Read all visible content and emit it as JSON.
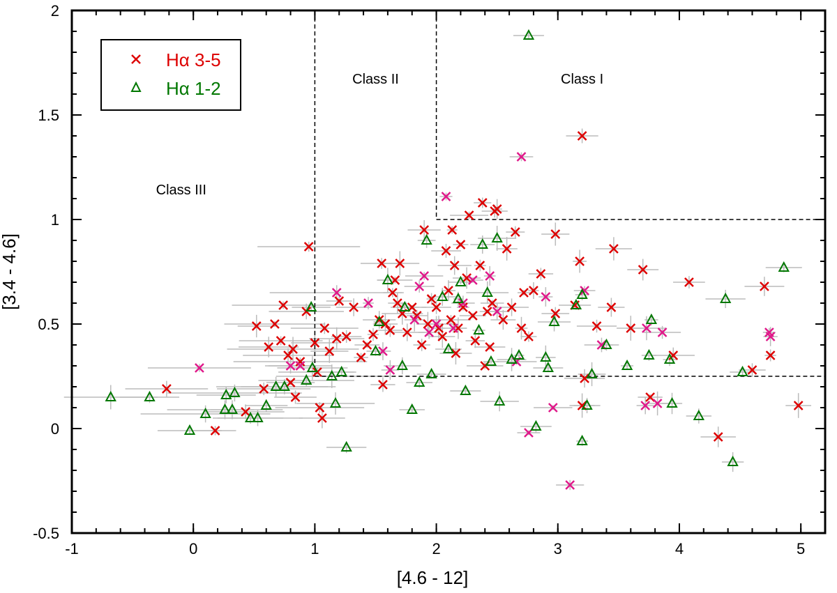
{
  "chart_data": {
    "type": "scatter",
    "xlabel": "[4.6 - 12]",
    "ylabel": "[3.4 - 4.6]",
    "xlim": [
      -1,
      5.2
    ],
    "ylim": [
      -0.5,
      2
    ],
    "xticks": [
      "-1",
      "0",
      "1",
      "2",
      "3",
      "4",
      "5"
    ],
    "yticks": [
      "-0.5",
      "0",
      "0.5",
      "1",
      "1.5",
      "2"
    ],
    "legend_position": "top-left",
    "colors": {
      "ha35": "#dd0000",
      "ha12": "#007700",
      "ha35_alt": "#e0198a",
      "errorbar": "#bbbbbb"
    },
    "regions": [
      {
        "label": "Class I",
        "x": 3.2,
        "y": 1.65
      },
      {
        "label": "Class II",
        "x": 1.5,
        "y": 1.65
      },
      {
        "label": "Class III",
        "x": -0.1,
        "y": 1.12
      }
    ],
    "boundaries": [
      {
        "x1": 1,
        "y1": 2,
        "x2": 1,
        "y2": 0.25
      },
      {
        "x1": 1,
        "y1": 0.25,
        "x2": 5.2,
        "y2": 0.25
      },
      {
        "x1": 2,
        "y1": 2,
        "x2": 2,
        "y2": 1
      },
      {
        "x1": 2,
        "y1": 1,
        "x2": 5.2,
        "y2": 1
      }
    ],
    "series": [
      {
        "name": "Hα 3-5",
        "legend": "Hα 3-5",
        "marker": "x",
        "color": "#dd0000",
        "points": [
          [
            -0.22,
            0.19
          ],
          [
            0.18,
            -0.01
          ],
          [
            0.43,
            0.08
          ],
          [
            0.52,
            0.49
          ],
          [
            0.58,
            0.19
          ],
          [
            0.62,
            0.39
          ],
          [
            0.67,
            0.5
          ],
          [
            0.72,
            0.42
          ],
          [
            0.74,
            0.59
          ],
          [
            0.78,
            0.35
          ],
          [
            0.8,
            0.22
          ],
          [
            0.82,
            0.38
          ],
          [
            0.84,
            0.15
          ],
          [
            0.88,
            0.32
          ],
          [
            0.93,
            0.56
          ],
          [
            0.95,
            0.87
          ],
          [
            1.0,
            0.41
          ],
          [
            1.02,
            0.27
          ],
          [
            1.04,
            0.1
          ],
          [
            1.06,
            0.05
          ],
          [
            1.08,
            0.48
          ],
          [
            1.12,
            0.37
          ],
          [
            1.18,
            0.43
          ],
          [
            1.2,
            0.61
          ],
          [
            1.26,
            0.44
          ],
          [
            1.32,
            0.58
          ],
          [
            1.38,
            0.34
          ],
          [
            1.43,
            0.4
          ],
          [
            1.48,
            0.45
          ],
          [
            1.53,
            0.52
          ],
          [
            1.55,
            0.79
          ],
          [
            1.56,
            0.21
          ],
          [
            1.58,
            0.5
          ],
          [
            1.62,
            0.47
          ],
          [
            1.64,
            0.65
          ],
          [
            1.66,
            0.71
          ],
          [
            1.68,
            0.6
          ],
          [
            1.7,
            0.79
          ],
          [
            1.72,
            0.55
          ],
          [
            1.76,
            0.46
          ],
          [
            1.8,
            0.58
          ],
          [
            1.84,
            0.54
          ],
          [
            1.88,
            0.4
          ],
          [
            1.9,
            0.95
          ],
          [
            1.93,
            0.5
          ],
          [
            1.96,
            0.62
          ],
          [
            2.0,
            0.58
          ],
          [
            2.02,
            0.48
          ],
          [
            2.05,
            0.44
          ],
          [
            2.08,
            0.85
          ],
          [
            2.1,
            0.66
          ],
          [
            2.12,
            0.52
          ],
          [
            2.13,
            0.95
          ],
          [
            2.15,
            0.78
          ],
          [
            2.16,
            0.36
          ],
          [
            2.18,
            0.48
          ],
          [
            2.2,
            0.88
          ],
          [
            2.22,
            0.58
          ],
          [
            2.25,
            0.72
          ],
          [
            2.27,
            1.02
          ],
          [
            2.3,
            0.54
          ],
          [
            2.32,
            0.42
          ],
          [
            2.36,
            0.78
          ],
          [
            2.38,
            1.08
          ],
          [
            2.4,
            0.3
          ],
          [
            2.42,
            0.56
          ],
          [
            2.44,
            0.39
          ],
          [
            2.46,
            0.6
          ],
          [
            2.48,
            1.04
          ],
          [
            2.5,
            1.05
          ],
          [
            2.55,
            0.52
          ],
          [
            2.58,
            0.86
          ],
          [
            2.62,
            0.58
          ],
          [
            2.65,
            0.94
          ],
          [
            2.7,
            0.48
          ],
          [
            2.72,
            0.65
          ],
          [
            2.76,
            0.44
          ],
          [
            2.8,
            0.66
          ],
          [
            2.86,
            0.74
          ],
          [
            2.98,
            0.93
          ],
          [
            2.98,
            0.55
          ],
          [
            3.18,
            0.8
          ],
          [
            3.2,
            1.4
          ],
          [
            3.22,
            0.24
          ],
          [
            3.2,
            0.11
          ],
          [
            3.32,
            0.49
          ],
          [
            3.44,
            0.58
          ],
          [
            3.46,
            0.86
          ],
          [
            3.6,
            0.48
          ],
          [
            3.7,
            0.76
          ],
          [
            3.76,
            0.15
          ],
          [
            3.95,
            0.35
          ],
          [
            4.08,
            0.7
          ],
          [
            4.32,
            -0.04
          ],
          [
            4.6,
            0.28
          ],
          [
            4.7,
            0.68
          ],
          [
            4.75,
            0.35
          ],
          [
            4.98,
            0.11
          ],
          [
            3.14,
            0.59
          ]
        ]
      },
      {
        "name": "Hα 3-5 (magenta)",
        "legend": "",
        "marker": "x",
        "color": "#e0198a",
        "points": [
          [
            0.05,
            0.29
          ],
          [
            0.8,
            0.3
          ],
          [
            0.88,
            0.3
          ],
          [
            1.18,
            0.65
          ],
          [
            1.44,
            0.6
          ],
          [
            1.56,
            0.37
          ],
          [
            1.62,
            0.28
          ],
          [
            1.82,
            0.52
          ],
          [
            1.86,
            0.68
          ],
          [
            1.9,
            0.73
          ],
          [
            1.94,
            0.46
          ],
          [
            2.0,
            0.5
          ],
          [
            2.08,
            1.11
          ],
          [
            2.14,
            0.48
          ],
          [
            2.22,
            0.6
          ],
          [
            2.3,
            0.71
          ],
          [
            2.44,
            0.73
          ],
          [
            2.5,
            0.56
          ],
          [
            2.66,
            0.32
          ],
          [
            2.7,
            1.3
          ],
          [
            2.76,
            -0.02
          ],
          [
            2.9,
            0.63
          ],
          [
            2.96,
            0.1
          ],
          [
            3.1,
            -0.27
          ],
          [
            3.22,
            0.66
          ],
          [
            3.36,
            0.4
          ],
          [
            3.72,
            0.11
          ],
          [
            3.73,
            0.48
          ],
          [
            3.82,
            0.12
          ],
          [
            3.86,
            0.46
          ],
          [
            4.74,
            0.46
          ],
          [
            4.75,
            0.44
          ]
        ]
      },
      {
        "name": "Hα 1-2",
        "legend": "Hα 1-2",
        "marker": "triangle",
        "color": "#007700",
        "points": [
          [
            -0.68,
            0.15
          ],
          [
            -0.36,
            0.15
          ],
          [
            -0.03,
            -0.01
          ],
          [
            0.1,
            0.07
          ],
          [
            0.26,
            0.09
          ],
          [
            0.27,
            0.16
          ],
          [
            0.32,
            0.09
          ],
          [
            0.34,
            0.17
          ],
          [
            0.47,
            0.05
          ],
          [
            0.53,
            0.05
          ],
          [
            0.6,
            0.11
          ],
          [
            0.68,
            0.2
          ],
          [
            0.75,
            0.2
          ],
          [
            0.93,
            0.23
          ],
          [
            0.97,
            0.58
          ],
          [
            0.98,
            0.29
          ],
          [
            1.14,
            0.25
          ],
          [
            1.17,
            0.12
          ],
          [
            1.22,
            0.27
          ],
          [
            1.26,
            -0.09
          ],
          [
            1.5,
            0.37
          ],
          [
            1.53,
            0.51
          ],
          [
            1.6,
            0.71
          ],
          [
            1.72,
            0.3
          ],
          [
            1.74,
            0.58
          ],
          [
            1.8,
            0.09
          ],
          [
            1.86,
            0.22
          ],
          [
            1.92,
            0.9
          ],
          [
            1.96,
            0.26
          ],
          [
            2.05,
            0.63
          ],
          [
            2.1,
            0.38
          ],
          [
            2.18,
            0.62
          ],
          [
            2.2,
            0.7
          ],
          [
            2.24,
            0.18
          ],
          [
            2.35,
            0.47
          ],
          [
            2.38,
            0.88
          ],
          [
            2.42,
            0.65
          ],
          [
            2.45,
            0.32
          ],
          [
            2.5,
            0.91
          ],
          [
            2.52,
            0.13
          ],
          [
            2.62,
            0.33
          ],
          [
            2.68,
            0.35
          ],
          [
            2.76,
            1.88
          ],
          [
            2.82,
            0.01
          ],
          [
            2.9,
            0.34
          ],
          [
            2.92,
            0.29
          ],
          [
            2.97,
            0.51
          ],
          [
            3.15,
            0.59
          ],
          [
            3.2,
            0.64
          ],
          [
            3.2,
            -0.06
          ],
          [
            3.24,
            0.11
          ],
          [
            3.28,
            0.26
          ],
          [
            3.4,
            0.4
          ],
          [
            3.57,
            0.3
          ],
          [
            3.75,
            0.35
          ],
          [
            3.77,
            0.52
          ],
          [
            3.92,
            0.33
          ],
          [
            3.94,
            0.12
          ],
          [
            4.16,
            0.06
          ],
          [
            4.38,
            0.62
          ],
          [
            4.44,
            -0.16
          ],
          [
            4.52,
            0.27
          ],
          [
            4.86,
            0.77
          ]
        ]
      }
    ]
  }
}
